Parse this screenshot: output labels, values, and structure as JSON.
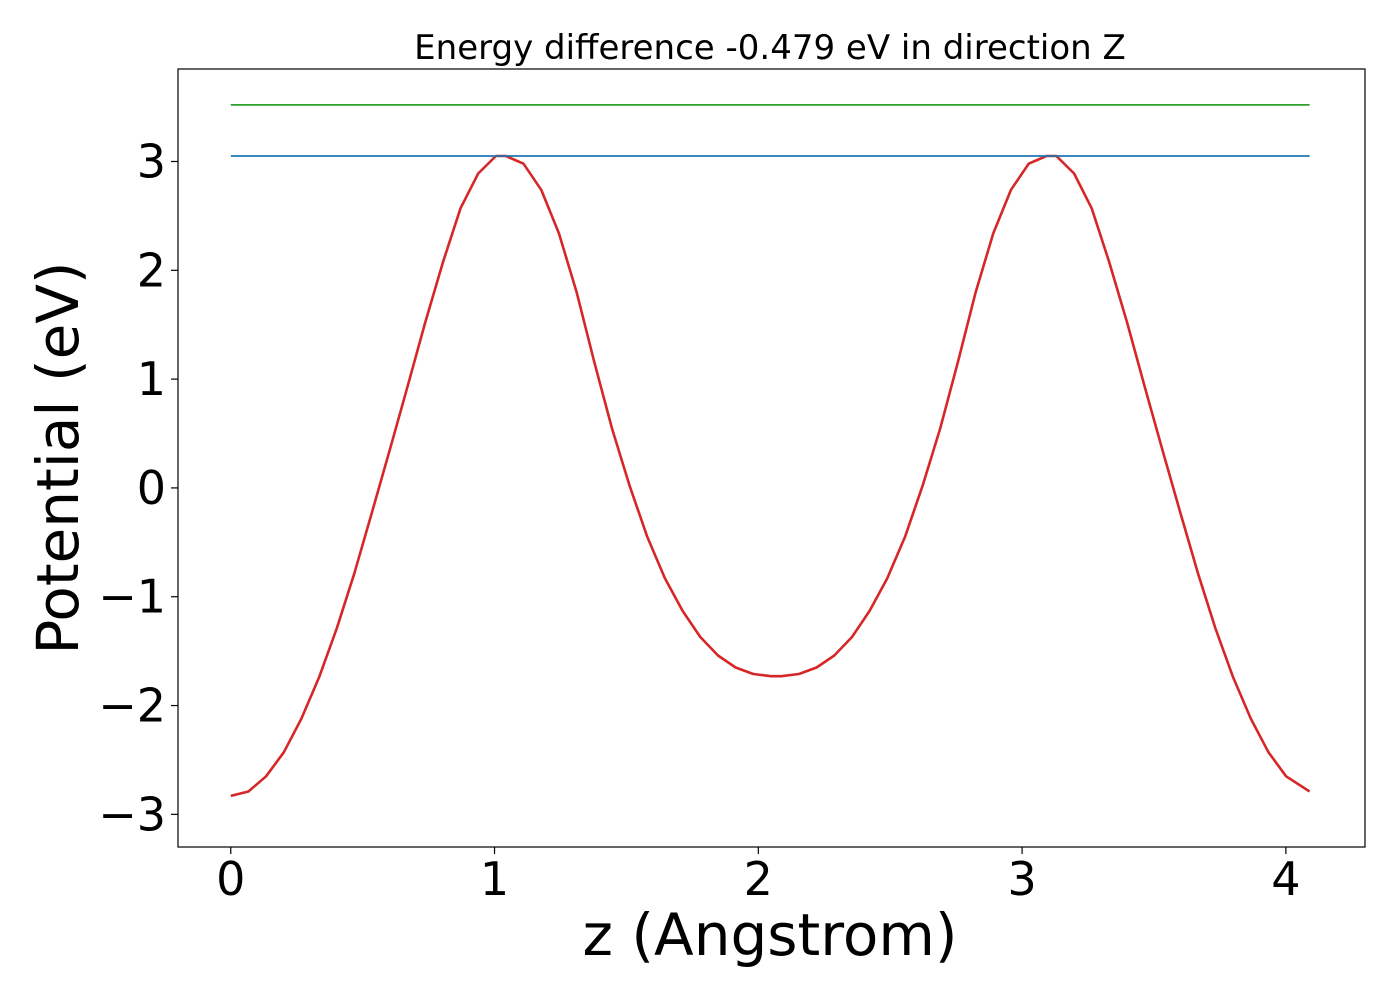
{
  "chart_data": {
    "type": "line",
    "title": "Energy difference -0.479 eV in direction Z",
    "xlabel": "z (Angstrom)",
    "ylabel": "Potential (eV)",
    "xlim": [
      -0.2,
      4.3
    ],
    "ylim": [
      -3.3,
      3.85
    ],
    "xticks": [
      0,
      1,
      2,
      3,
      4
    ],
    "xtick_labels": [
      "0",
      "1",
      "2",
      "3",
      "4"
    ],
    "yticks": [
      -3,
      -2,
      -1,
      0,
      1,
      2,
      3
    ],
    "ytick_labels": [
      "−3",
      "−2",
      "−1",
      "0",
      "1",
      "2",
      "3"
    ],
    "grid": false,
    "series": [
      {
        "color": "#d62728",
        "x": [
          0.0,
          0.067,
          0.134,
          0.201,
          0.268,
          0.335,
          0.402,
          0.469,
          0.536,
          0.603,
          0.67,
          0.737,
          0.804,
          0.871,
          0.938,
          1.005,
          1.043,
          1.11,
          1.177,
          1.244,
          1.311,
          1.378,
          1.445,
          1.512,
          1.579,
          1.646,
          1.713,
          1.78,
          1.847,
          1.914,
          1.981,
          2.048,
          2.087,
          2.154,
          2.221,
          2.288,
          2.355,
          2.422,
          2.489,
          2.556,
          2.623,
          2.69,
          2.757,
          2.824,
          2.891,
          2.958,
          3.025,
          3.092,
          3.13,
          3.197,
          3.264,
          3.331,
          3.398,
          3.465,
          3.532,
          3.599,
          3.666,
          3.733,
          3.8,
          3.867,
          3.934,
          4.001,
          4.09
        ],
        "y": [
          -2.83,
          -2.79,
          -2.65,
          -2.43,
          -2.12,
          -1.74,
          -1.29,
          -0.78,
          -0.22,
          0.35,
          0.93,
          1.52,
          2.07,
          2.57,
          2.89,
          3.05,
          3.05,
          2.98,
          2.74,
          2.34,
          1.8,
          1.16,
          0.55,
          0.02,
          -0.45,
          -0.83,
          -1.13,
          -1.37,
          -1.54,
          -1.65,
          -1.71,
          -1.73,
          -1.73,
          -1.71,
          -1.65,
          -1.54,
          -1.37,
          -1.13,
          -0.83,
          -0.45,
          0.02,
          0.55,
          1.16,
          1.8,
          2.34,
          2.74,
          2.98,
          3.05,
          3.05,
          2.89,
          2.57,
          2.07,
          1.52,
          0.93,
          0.35,
          -0.22,
          -0.78,
          -1.29,
          -1.74,
          -2.12,
          -2.43,
          -2.65,
          -2.79
        ]
      },
      {
        "color": "#1f77b4",
        "x": [
          0.0,
          4.09
        ],
        "y": [
          3.05,
          3.05
        ]
      },
      {
        "color": "#2ca02c",
        "x": [
          0.0,
          4.09
        ],
        "y": [
          3.52,
          3.52
        ]
      }
    ]
  }
}
